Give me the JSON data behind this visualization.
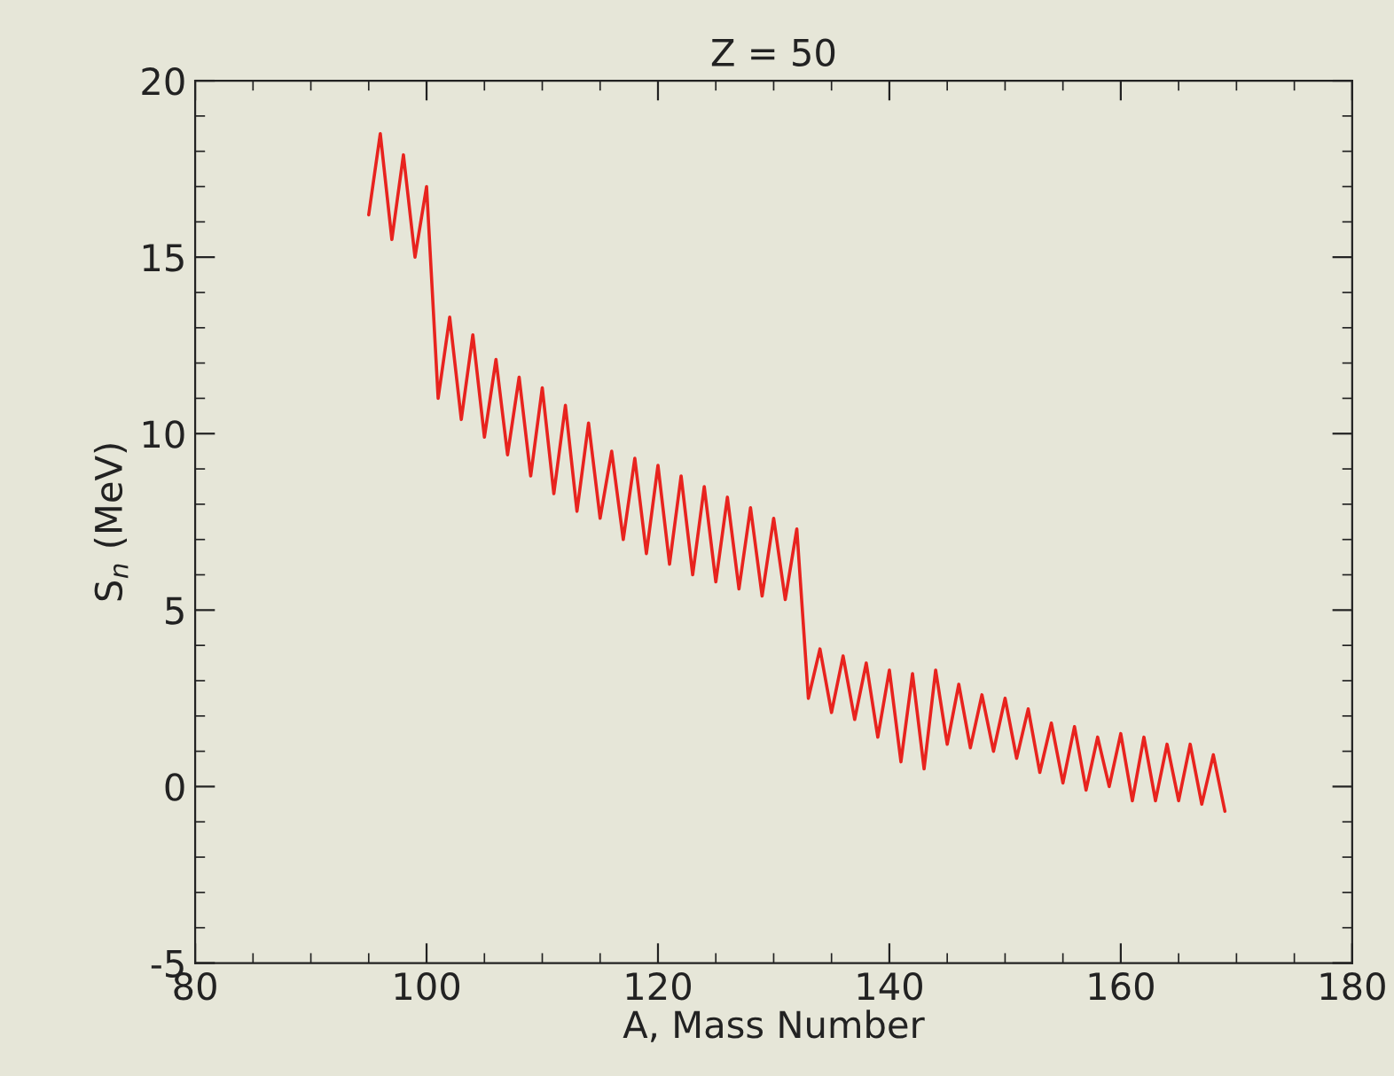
{
  "chart_data": {
    "type": "line",
    "title": "Z = 50",
    "xlabel": "A, Mass Number",
    "ylabel": "S$_{n}$ (MeV)",
    "x": [
      95,
      96,
      97,
      98,
      99,
      100,
      101,
      102,
      103,
      104,
      105,
      106,
      107,
      108,
      109,
      110,
      111,
      112,
      113,
      114,
      115,
      116,
      117,
      118,
      119,
      120,
      121,
      122,
      123,
      124,
      125,
      126,
      127,
      128,
      129,
      130,
      131,
      132,
      133,
      134,
      135,
      136,
      137,
      138,
      139,
      140,
      141,
      142,
      143,
      144,
      145,
      146,
      147,
      148,
      149,
      150,
      151,
      152,
      153,
      154,
      155,
      156,
      157,
      158,
      159,
      160,
      161,
      162,
      163,
      164,
      165,
      166,
      167,
      168,
      169
    ],
    "series": [
      {
        "color": "#e8231e",
        "values": [
          16.2,
          18.5,
          15.5,
          17.9,
          15.0,
          17.0,
          11.0,
          13.3,
          10.4,
          12.8,
          9.9,
          12.1,
          9.4,
          11.6,
          8.8,
          11.3,
          8.3,
          10.8,
          7.8,
          10.3,
          7.6,
          9.5,
          7.0,
          9.3,
          6.6,
          9.1,
          6.3,
          8.8,
          6.0,
          8.5,
          5.8,
          8.2,
          5.6,
          7.9,
          5.4,
          7.6,
          5.3,
          7.3,
          2.5,
          3.9,
          2.1,
          3.7,
          1.9,
          3.5,
          1.4,
          3.3,
          0.7,
          3.2,
          0.5,
          3.3,
          1.2,
          2.9,
          1.1,
          2.6,
          1.0,
          2.5,
          0.8,
          2.2,
          0.4,
          1.8,
          0.1,
          1.7,
          -0.1,
          1.4,
          0.0,
          1.5,
          -0.4,
          1.4,
          -0.4,
          1.2,
          -0.4,
          1.2,
          -0.5,
          0.9,
          -0.7
        ]
      }
    ],
    "xlim": [
      80,
      180
    ],
    "xticks": [
      80,
      100,
      120,
      140,
      160,
      180
    ],
    "ylim": [
      -5,
      20
    ],
    "yticks": [
      -5,
      0,
      5,
      10,
      15,
      20
    ],
    "grid": false,
    "legend": false,
    "marker": "none",
    "line_style": "solid"
  }
}
